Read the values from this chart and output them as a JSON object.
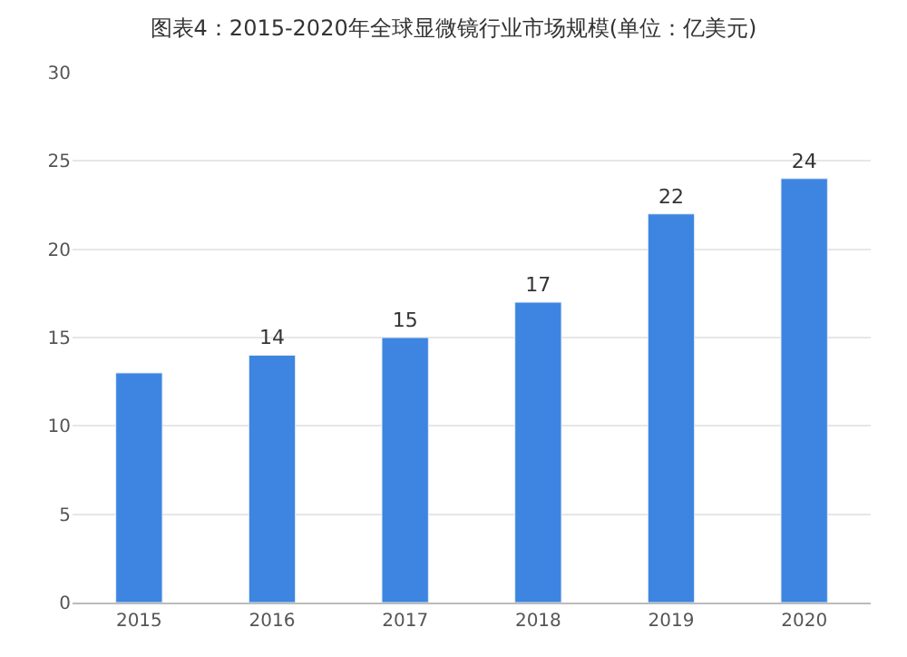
{
  "chart_data": {
    "type": "bar",
    "title": "图表4：2015-2020年全球显微镜行业市场规模(单位：亿美元)",
    "categories": [
      "2015",
      "2016",
      "2017",
      "2018",
      "2019",
      "2020"
    ],
    "values": [
      13,
      14,
      15,
      17,
      22,
      24
    ],
    "value_labels": [
      null,
      "14",
      "15",
      "17",
      "22",
      "24"
    ],
    "color": "#3d85e0",
    "ylim": [
      0,
      30
    ],
    "yticks": [
      0,
      5,
      10,
      15,
      20,
      25,
      30
    ],
    "grid": "y"
  }
}
